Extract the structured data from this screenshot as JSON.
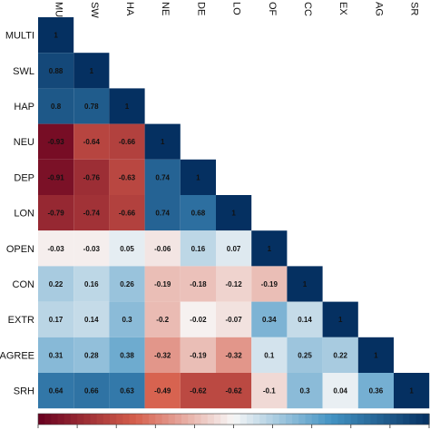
{
  "chart_data": {
    "type": "heatmap",
    "title": "",
    "row_labels": [
      "MULTI",
      "SWL",
      "HAP",
      "NEU",
      "DEP",
      "LON",
      "OPEN",
      "CON",
      "EXTR",
      "AGREE",
      "SRH"
    ],
    "col_labels": [
      "MU",
      "SW",
      "HA",
      "NE",
      "DE",
      "LO",
      "OF",
      "CC",
      "EX",
      "AG",
      "SR"
    ],
    "values": [
      [
        1
      ],
      [
        0.88,
        1
      ],
      [
        0.8,
        0.78,
        1
      ],
      [
        -0.93,
        -0.64,
        -0.66,
        1
      ],
      [
        -0.91,
        -0.76,
        -0.63,
        0.74,
        1
      ],
      [
        -0.79,
        -0.74,
        -0.66,
        0.74,
        0.68,
        1
      ],
      [
        -0.03,
        -0.03,
        0.05,
        -0.06,
        0.16,
        0.07,
        1
      ],
      [
        0.22,
        0.16,
        0.26,
        -0.19,
        -0.18,
        -0.12,
        -0.19,
        1
      ],
      [
        0.17,
        0.14,
        0.3,
        -0.2,
        -0.02,
        -0.07,
        0.34,
        0.14,
        1
      ],
      [
        0.31,
        0.28,
        0.38,
        -0.32,
        -0.19,
        -0.32,
        0.1,
        0.25,
        0.22,
        1
      ],
      [
        0.64,
        0.66,
        0.63,
        -0.49,
        -0.62,
        -0.62,
        -0.1,
        0.3,
        0.04,
        0.36,
        1
      ]
    ],
    "value_labels": [
      [
        "1"
      ],
      [
        "0.88",
        "1"
      ],
      [
        "0.8",
        "0.78",
        "1"
      ],
      [
        "-0.93",
        "-0.64",
        "-0.66",
        "1"
      ],
      [
        "-0.91",
        "-0.76",
        "-0.63",
        "0.74",
        "1"
      ],
      [
        "-0.79",
        "-0.74",
        "-0.66",
        "0.74",
        "0.68",
        "1"
      ],
      [
        "-0.03",
        "-0.03",
        "0.05",
        "-0.06",
        "0.16",
        "0.07",
        "1"
      ],
      [
        "0.22",
        "0.16",
        "0.26",
        "-0.19",
        "-0.18",
        "-0.12",
        "-0.19",
        "1"
      ],
      [
        "0.17",
        "0.14",
        "0.3",
        "-0.2",
        "-0.02",
        "-0.07",
        "0.34",
        "0.14",
        "1"
      ],
      [
        "0.31",
        "0.28",
        "0.38",
        "-0.32",
        "-0.19",
        "-0.32",
        "0.1",
        "0.25",
        "0.22",
        "1"
      ],
      [
        "0.64",
        "0.66",
        "0.63",
        "-0.49",
        "-0.62",
        "-0.62",
        "-0.1",
        "0.3",
        "0.04",
        "0.36",
        "1"
      ]
    ],
    "value_range": [
      -1,
      1
    ],
    "layout": "lower-triangle",
    "colorbar": "bottom",
    "colors": {
      "negative": "#67001f",
      "mid_negative": "#d6604d",
      "neutral": "#f7f7f7",
      "mid_positive": "#4393c3",
      "positive": "#053061"
    }
  }
}
